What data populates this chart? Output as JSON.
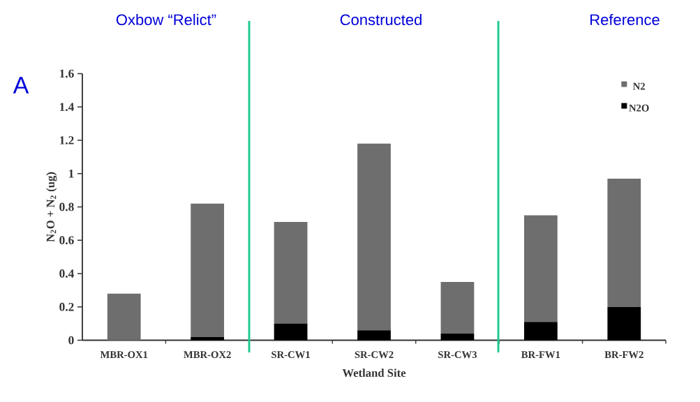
{
  "chart_data": {
    "type": "bar",
    "stacked": true,
    "categories": [
      "MBR-OX1",
      "MBR-OX2",
      "SR-CW1",
      "SR-CW2",
      "SR-CW3",
      "BR-FW1",
      "BR-FW2"
    ],
    "series": [
      {
        "name": "N2O",
        "color": "#000000",
        "values": [
          0,
          0.02,
          0.1,
          0.06,
          0.04,
          0.11,
          0.2
        ]
      },
      {
        "name": "N2",
        "color": "#6e6e6e",
        "values": [
          0.28,
          0.8,
          0.61,
          1.12,
          0.31,
          0.64,
          0.77
        ]
      }
    ],
    "xlabel": "Wetland Site",
    "ylabel": "N$_{2}$O + N$_{2}$ (ug)",
    "ylim": [
      0,
      1.6
    ],
    "yticks": [
      0,
      0.2,
      0.4,
      0.6,
      0.8,
      1,
      1.2,
      1.4,
      1.6
    ],
    "legend": "top right",
    "annotations": [
      "Oxbow “Relict”",
      "Constructed",
      "Reference",
      "A"
    ]
  }
}
